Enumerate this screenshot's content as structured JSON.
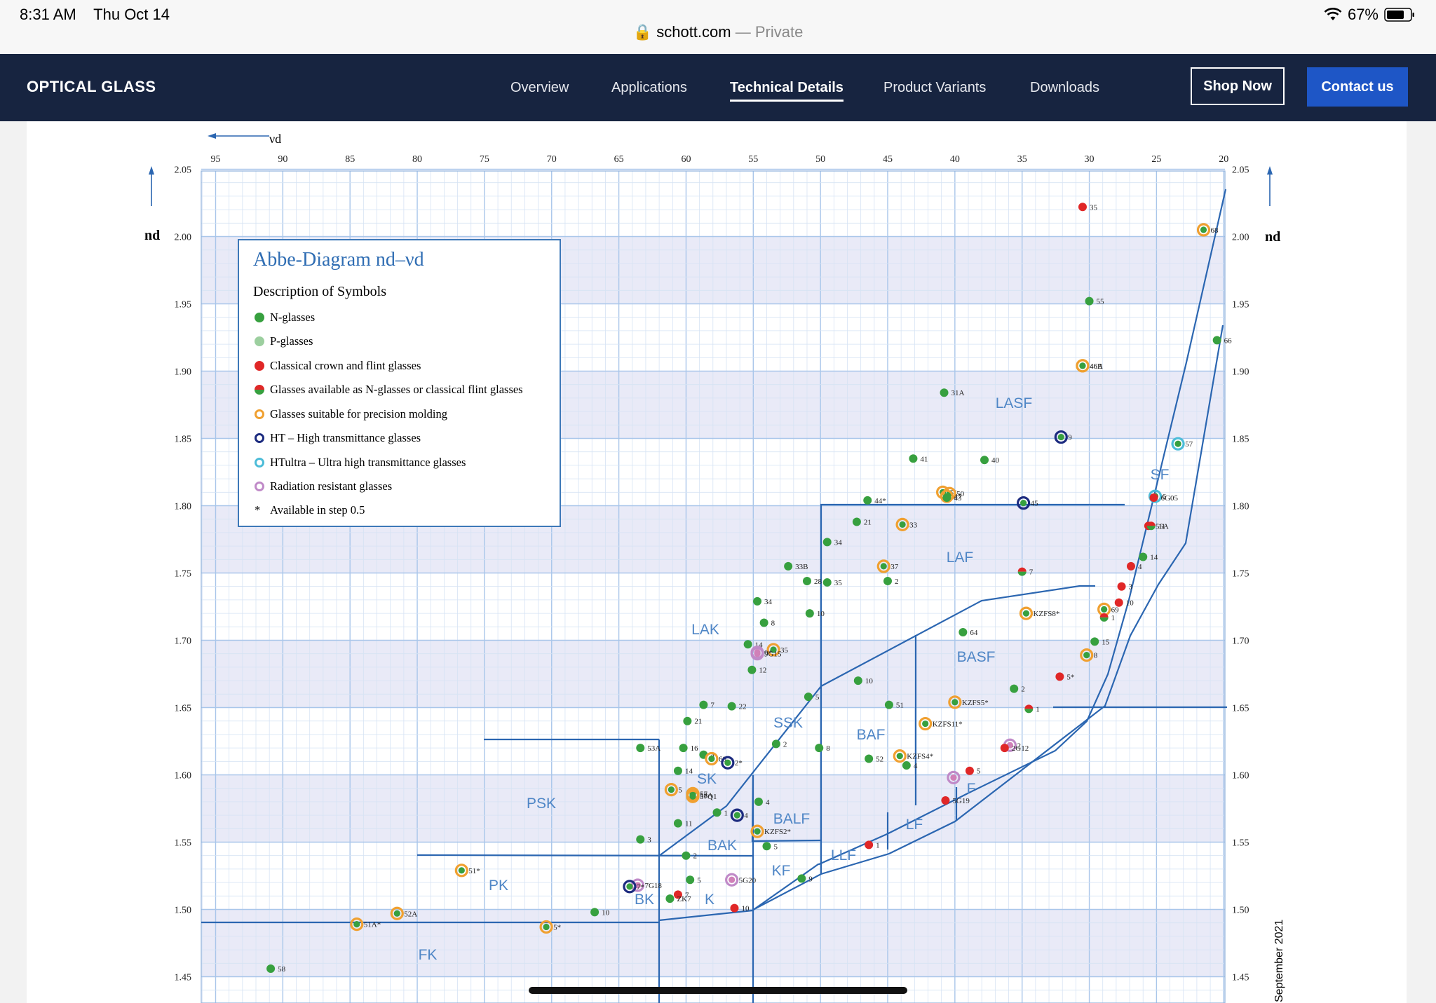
{
  "status": {
    "time": "8:31 AM",
    "date": "Thu Oct 14",
    "domain": "schott.com",
    "privacy": "— Private",
    "battery": "67%"
  },
  "nav": {
    "brand": "OPTICAL GLASS",
    "items": [
      "Overview",
      "Applications",
      "Technical Details",
      "Product Variants",
      "Downloads"
    ],
    "shop": "Shop Now",
    "contact": "Contact us"
  },
  "legend": {
    "title": "Abbe-Diagram nd–νd",
    "subtitle": "Description of Symbols",
    "items": [
      "N-glasses",
      "P-glasses",
      "Classical crown and flint glasses",
      "Glasses available as N-glasses or classical flint glasses",
      "Glasses suitable for precision molding",
      "HT – High transmittance glasses",
      "HTultra – Ultra high transmittance glasses",
      "Radiation resistant glasses",
      "Available in step 0.5"
    ]
  },
  "side_note": "September 2021",
  "chart_data": {
    "type": "scatter",
    "title": "Abbe-Diagram nd–νd",
    "xlabel": "νd",
    "ylabel": "nd",
    "xlim": [
      96,
      20
    ],
    "ylim": [
      1.44,
      2.05
    ],
    "x_ticks": [
      95,
      90,
      85,
      80,
      75,
      70,
      65,
      60,
      55,
      50,
      45,
      40,
      35,
      30,
      25,
      20
    ],
    "y_ticks": [
      "2.05",
      "2.00",
      "1.95",
      "1.90",
      "1.85",
      "1.80",
      "1.75",
      "1.70",
      "1.65",
      "1.60",
      "1.55",
      "1.50",
      "1.45"
    ],
    "regions": [
      "LASF",
      "SF",
      "LAF",
      "BASF",
      "LAK",
      "SSK",
      "BAF",
      "SK",
      "F",
      "PSK",
      "BALF",
      "LF",
      "BAK",
      "LLF",
      "KF",
      "PK",
      "BK",
      "K",
      "FK"
    ],
    "points": [
      {
        "label": "35",
        "x": 30.5,
        "y": 2.022,
        "t": "c"
      },
      {
        "label": "68",
        "x": 21.5,
        "y": 2.005,
        "t": "m"
      },
      {
        "label": "55",
        "x": 30.0,
        "y": 1.952,
        "t": "n"
      },
      {
        "label": "66",
        "x": 20.5,
        "y": 1.923,
        "t": "n"
      },
      {
        "label": "46A",
        "x": 30.5,
        "y": 1.904,
        "t": "m"
      },
      {
        "label": "46B",
        "x": 30.5,
        "y": 1.904,
        "t": "m"
      },
      {
        "label": "31A",
        "x": 40.8,
        "y": 1.884,
        "t": "n"
      },
      {
        "label": "9",
        "x": 32.1,
        "y": 1.851,
        "t": "h"
      },
      {
        "label": "57",
        "x": 23.4,
        "y": 1.846,
        "t": "u"
      },
      {
        "label": "41",
        "x": 43.1,
        "y": 1.835,
        "t": "n"
      },
      {
        "label": "40",
        "x": 37.8,
        "y": 1.834,
        "t": "n"
      },
      {
        "label": "51",
        "x": 40.9,
        "y": 1.81,
        "t": "m"
      },
      {
        "label": "50",
        "x": 40.4,
        "y": 1.809,
        "t": "m"
      },
      {
        "label": "47",
        "x": 40.6,
        "y": 1.807,
        "t": "m"
      },
      {
        "label": "43",
        "x": 40.6,
        "y": 1.806,
        "t": "n"
      },
      {
        "label": "44*",
        "x": 46.5,
        "y": 1.804,
        "t": "n"
      },
      {
        "label": "45",
        "x": 34.9,
        "y": 1.802,
        "t": "h"
      },
      {
        "label": "6",
        "x": 25.1,
        "y": 1.807,
        "t": "u"
      },
      {
        "label": "6G05",
        "x": 25.2,
        "y": 1.806,
        "t": "c"
      },
      {
        "label": "21",
        "x": 47.3,
        "y": 1.788,
        "t": "n"
      },
      {
        "label": "33",
        "x": 43.9,
        "y": 1.786,
        "t": "m"
      },
      {
        "label": "56A",
        "x": 25.6,
        "y": 1.785,
        "t": "c"
      },
      {
        "label": "11",
        "x": 25.4,
        "y": 1.785,
        "t": "nc"
      },
      {
        "label": "34",
        "x": 49.5,
        "y": 1.773,
        "t": "n"
      },
      {
        "label": "14",
        "x": 26.0,
        "y": 1.762,
        "t": "n"
      },
      {
        "label": "33B",
        "x": 52.4,
        "y": 1.755,
        "t": "n"
      },
      {
        "label": "37",
        "x": 45.3,
        "y": 1.755,
        "t": "m"
      },
      {
        "label": "4",
        "x": 26.9,
        "y": 1.755,
        "t": "c"
      },
      {
        "label": "7",
        "x": 35.0,
        "y": 1.751,
        "t": "nc"
      },
      {
        "label": "28",
        "x": 51.0,
        "y": 1.744,
        "t": "n"
      },
      {
        "label": "35",
        "x": 49.5,
        "y": 1.743,
        "t": "n"
      },
      {
        "label": "2",
        "x": 45.0,
        "y": 1.744,
        "t": "n"
      },
      {
        "label": "3",
        "x": 27.6,
        "y": 1.74,
        "t": "c"
      },
      {
        "label": "34",
        "x": 54.7,
        "y": 1.729,
        "t": "n"
      },
      {
        "label": "10",
        "x": 27.8,
        "y": 1.728,
        "t": "c"
      },
      {
        "label": "69",
        "x": 28.9,
        "y": 1.723,
        "t": "m"
      },
      {
        "label": "KZFS8*",
        "x": 34.7,
        "y": 1.72,
        "t": "m"
      },
      {
        "label": "1",
        "x": 28.9,
        "y": 1.717,
        "t": "nc"
      },
      {
        "label": "10",
        "x": 50.8,
        "y": 1.72,
        "t": "n"
      },
      {
        "label": "8",
        "x": 54.2,
        "y": 1.713,
        "t": "n"
      },
      {
        "label": "64",
        "x": 39.4,
        "y": 1.706,
        "t": "n"
      },
      {
        "label": "15",
        "x": 29.6,
        "y": 1.699,
        "t": "n"
      },
      {
        "label": "14",
        "x": 55.4,
        "y": 1.697,
        "t": "n"
      },
      {
        "label": "35",
        "x": 53.5,
        "y": 1.693,
        "t": "m"
      },
      {
        "label": "9*",
        "x": 54.7,
        "y": 1.691,
        "t": "r"
      },
      {
        "label": "8",
        "x": 30.2,
        "y": 1.689,
        "t": "m"
      },
      {
        "label": "9G15",
        "x": 54.7,
        "y": 1.69,
        "t": "r"
      },
      {
        "label": "12",
        "x": 55.1,
        "y": 1.678,
        "t": "n"
      },
      {
        "label": "5*",
        "x": 32.2,
        "y": 1.673,
        "t": "c"
      },
      {
        "label": "10",
        "x": 47.2,
        "y": 1.67,
        "t": "n"
      },
      {
        "label": "2",
        "x": 35.6,
        "y": 1.664,
        "t": "n"
      },
      {
        "label": "5",
        "x": 50.9,
        "y": 1.658,
        "t": "n"
      },
      {
        "label": "KZFS5*",
        "x": 40.0,
        "y": 1.654,
        "t": "m"
      },
      {
        "label": "7",
        "x": 58.7,
        "y": 1.652,
        "t": "n"
      },
      {
        "label": "22",
        "x": 56.6,
        "y": 1.651,
        "t": "n"
      },
      {
        "label": "51",
        "x": 44.9,
        "y": 1.652,
        "t": "n"
      },
      {
        "label": "1",
        "x": 34.5,
        "y": 1.649,
        "t": "nc"
      },
      {
        "label": "21",
        "x": 59.9,
        "y": 1.64,
        "t": "n"
      },
      {
        "label": "KZFS11*",
        "x": 42.2,
        "y": 1.638,
        "t": "m"
      },
      {
        "label": "2",
        "x": 53.3,
        "y": 1.623,
        "t": "n"
      },
      {
        "label": "8",
        "x": 50.1,
        "y": 1.62,
        "t": "n"
      },
      {
        "label": "16",
        "x": 60.2,
        "y": 1.62,
        "t": "n"
      },
      {
        "label": "53A",
        "x": 63.4,
        "y": 1.62,
        "t": "n"
      },
      {
        "label": "2",
        "x": 35.9,
        "y": 1.622,
        "t": "r"
      },
      {
        "label": "4",
        "x": 58.7,
        "y": 1.615,
        "t": "n"
      },
      {
        "label": "60",
        "x": 58.1,
        "y": 1.612,
        "t": "m"
      },
      {
        "label": "KZFS4*",
        "x": 44.1,
        "y": 1.614,
        "t": "m"
      },
      {
        "label": "2*",
        "x": 56.9,
        "y": 1.609,
        "t": "h"
      },
      {
        "label": "52",
        "x": 46.4,
        "y": 1.612,
        "t": "n"
      },
      {
        "label": "4",
        "x": 43.6,
        "y": 1.607,
        "t": "n"
      },
      {
        "label": "14",
        "x": 60.6,
        "y": 1.603,
        "t": "n"
      },
      {
        "label": "5",
        "x": 38.9,
        "y": 1.603,
        "t": "c"
      },
      {
        "label": "2G12",
        "x": 36.3,
        "y": 1.62,
        "t": "c"
      },
      {
        "label": "F2",
        "x": 40.1,
        "y": 1.598,
        "t": "r"
      },
      {
        "label": "5",
        "x": 61.1,
        "y": 1.589,
        "t": "m"
      },
      {
        "label": "57",
        "x": 59.5,
        "y": 1.586,
        "t": "m"
      },
      {
        "label": "58A",
        "x": 59.5,
        "y": 1.585,
        "t": "m"
      },
      {
        "label": "57Q1",
        "x": 59.5,
        "y": 1.584,
        "t": "m"
      },
      {
        "label": "4",
        "x": 54.6,
        "y": 1.58,
        "t": "n"
      },
      {
        "label": "5G19",
        "x": 40.7,
        "y": 1.581,
        "t": "c"
      },
      {
        "label": "1",
        "x": 57.7,
        "y": 1.572,
        "t": "n"
      },
      {
        "label": "4",
        "x": 56.2,
        "y": 1.57,
        "t": "h"
      },
      {
        "label": "11",
        "x": 60.6,
        "y": 1.564,
        "t": "n"
      },
      {
        "label": "KZFS2*",
        "x": 54.7,
        "y": 1.558,
        "t": "m"
      },
      {
        "label": "3",
        "x": 63.4,
        "y": 1.552,
        "t": "n"
      },
      {
        "label": "5",
        "x": 54.0,
        "y": 1.547,
        "t": "n"
      },
      {
        "label": "1",
        "x": 46.4,
        "y": 1.548,
        "t": "c"
      },
      {
        "label": "2",
        "x": 60.0,
        "y": 1.54,
        "t": "n"
      },
      {
        "label": "51*",
        "x": 76.7,
        "y": 1.529,
        "t": "m"
      },
      {
        "label": "5G20",
        "x": 56.6,
        "y": 1.522,
        "t": "r"
      },
      {
        "label": "7G18",
        "x": 63.6,
        "y": 1.518,
        "t": "r"
      },
      {
        "label": "5",
        "x": 59.7,
        "y": 1.522,
        "t": "n"
      },
      {
        "label": "9",
        "x": 51.4,
        "y": 1.523,
        "t": "n"
      },
      {
        "label": "7*",
        "x": 64.2,
        "y": 1.517,
        "t": "h"
      },
      {
        "label": "7",
        "x": 60.6,
        "y": 1.511,
        "t": "c"
      },
      {
        "label": "ZK7",
        "x": 61.2,
        "y": 1.508,
        "t": "n"
      },
      {
        "label": "10",
        "x": 56.4,
        "y": 1.501,
        "t": "c"
      },
      {
        "label": "10",
        "x": 66.8,
        "y": 1.498,
        "t": "n"
      },
      {
        "label": "52A",
        "x": 81.5,
        "y": 1.497,
        "t": "m"
      },
      {
        "label": "51A*",
        "x": 84.5,
        "y": 1.489,
        "t": "m"
      },
      {
        "label": "5*",
        "x": 70.4,
        "y": 1.487,
        "t": "m"
      },
      {
        "label": "58",
        "x": 90.9,
        "y": 1.456,
        "t": "n"
      }
    ]
  }
}
